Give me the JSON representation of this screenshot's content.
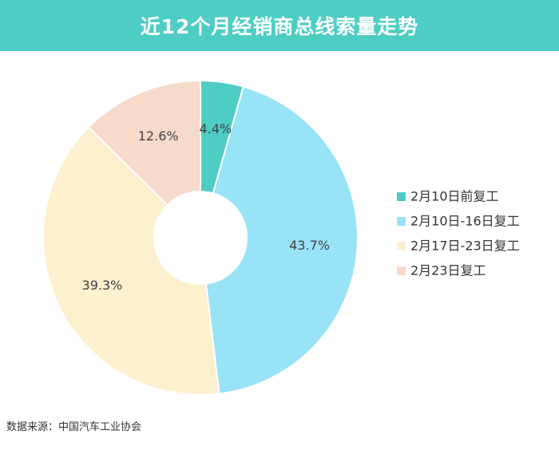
{
  "chart_data": {
    "type": "pie",
    "title": "近12个月经销商总线索量走势",
    "categories": [
      "2月10日前复工",
      "2月10日-16日复工",
      "2月17日-23日复工",
      "2月23日复工"
    ],
    "values": [
      4.4,
      43.7,
      39.3,
      12.6
    ],
    "data_labels": [
      "4.4%",
      "43.7%",
      "39.3%",
      "12.6%"
    ],
    "colors": [
      "#4ECDC4",
      "#99E3F7",
      "#FDF0CE",
      "#F7DACA"
    ],
    "donut": true,
    "legend": "right",
    "source": "数据来源：中国汽车工业协会"
  }
}
